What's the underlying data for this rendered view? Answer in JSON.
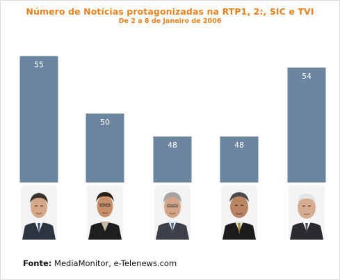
{
  "chart_data": {
    "type": "bar",
    "title": "Número de Notícias protagonizadas na RTP1, 2:, SIC e TVI",
    "subtitle": "De 2 a 8 de Janeiro de 2006",
    "values": [
      55,
      50,
      48,
      48,
      54
    ],
    "value_labels": [
      "55",
      "50",
      "48",
      "48",
      "54"
    ],
    "ylim": [
      44,
      56
    ],
    "grid": false,
    "legend": "none",
    "bar_color": "#6b849f",
    "value_label_color": "#ffffff",
    "title_color": "#e8821e"
  },
  "source": {
    "label": "Fonte:",
    "text": "MediaMonitor, e-Telenews.com"
  }
}
